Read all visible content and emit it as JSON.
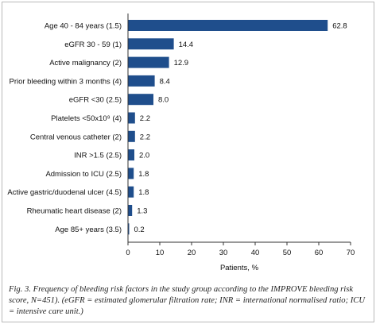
{
  "chart_data": {
    "type": "bar",
    "orientation": "horizontal",
    "categories": [
      "Age 40 - 84 years (1.5)",
      "eGFR 30 - 59 (1)",
      "Active malignancy (2)",
      "Prior bleeding within 3 months (4)",
      "eGFR <30 (2.5)",
      "Platelets <50x10⁹ (4)",
      "Central venous catheter (2)",
      "INR >1.5 (2.5)",
      "Admission to ICU (2.5)",
      "Active gastric/duodenal ulcer (4.5)",
      "Rheumatic heart disease (2)",
      "Age 85+ years (3.5)"
    ],
    "values": [
      62.8,
      14.4,
      12.9,
      8.4,
      8.0,
      2.2,
      2.2,
      2.0,
      1.8,
      1.8,
      1.3,
      0.2
    ],
    "value_labels": [
      "62.8",
      "14.4",
      "12.9",
      "8.4",
      "8.0",
      "2.2",
      "2.2",
      "2.0",
      "1.8",
      "1.8",
      "1.3",
      "0.2"
    ],
    "xlabel": "Patients, %",
    "ylabel": "",
    "xlim": [
      0,
      70
    ],
    "xticks": [
      "0",
      "10",
      "20",
      "30",
      "40",
      "50",
      "60",
      "70"
    ],
    "grid": false,
    "bar_color": "#1f4e8c"
  },
  "caption": "Fig. 3. Frequency of bleeding risk factors in the study group according to the IMPROVE bleeding risk score, N=451). (eGFR = estimated glomerular filtration rate; INR = international normalised ratio; ICU = intensive care unit.)"
}
